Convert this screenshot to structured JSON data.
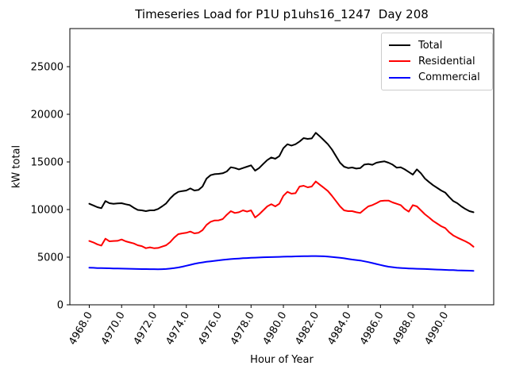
{
  "chart_data": {
    "type": "line",
    "title": "Timeseries Load for P1U p1uhs16_1247  Day 208",
    "xlabel": "Hour of Year",
    "ylabel": "kW total",
    "xlim": [
      4966.8,
      4993.0
    ],
    "ylim": [
      0,
      29000
    ],
    "grid": false,
    "legend_position": "upper right",
    "x_start": 4968.0,
    "x_step": 0.25,
    "x_ticks": [
      {
        "value": 4968,
        "label": "4968.0"
      },
      {
        "value": 4970,
        "label": "4970.0"
      },
      {
        "value": 4972,
        "label": "4972.0"
      },
      {
        "value": 4974,
        "label": "4974.0"
      },
      {
        "value": 4976,
        "label": "4976.0"
      },
      {
        "value": 4978,
        "label": "4978.0"
      },
      {
        "value": 4980,
        "label": "4980.0"
      },
      {
        "value": 4982,
        "label": "4982.0"
      },
      {
        "value": 4984,
        "label": "4984.0"
      },
      {
        "value": 4986,
        "label": "4986.0"
      },
      {
        "value": 4988,
        "label": "4988.0"
      },
      {
        "value": 4990,
        "label": "4990.0"
      }
    ],
    "y_ticks": [
      {
        "value": 0,
        "label": "0"
      },
      {
        "value": 5000,
        "label": "5000"
      },
      {
        "value": 10000,
        "label": "10000"
      },
      {
        "value": 15000,
        "label": "15000"
      },
      {
        "value": 20000,
        "label": "20000"
      },
      {
        "value": 25000,
        "label": "25000"
      }
    ],
    "series": [
      {
        "name": "Total",
        "color": "#000000",
        "values": [
          10610,
          10430,
          10250,
          10140,
          10890,
          10670,
          10610,
          10640,
          10670,
          10560,
          10470,
          10190,
          9960,
          9920,
          9830,
          9920,
          9920,
          10060,
          10330,
          10640,
          11170,
          11580,
          11860,
          11940,
          12000,
          12220,
          12000,
          12060,
          12420,
          13250,
          13610,
          13720,
          13750,
          13810,
          14000,
          14440,
          14360,
          14220,
          14360,
          14500,
          14640,
          14080,
          14360,
          14780,
          15190,
          15470,
          15330,
          15610,
          16440,
          16860,
          16720,
          16860,
          17140,
          17500,
          17420,
          17470,
          18060,
          17690,
          17280,
          16860,
          16310,
          15610,
          14920,
          14500,
          14360,
          14420,
          14300,
          14360,
          14720,
          14780,
          14700,
          14920,
          15000,
          15060,
          14920,
          14720,
          14400,
          14440,
          14220,
          13940,
          13670,
          14220,
          13810,
          13250,
          12890,
          12560,
          12280,
          12000,
          11780,
          11310,
          10890,
          10670,
          10330,
          10060,
          9830,
          9720
        ]
      },
      {
        "name": "Residential",
        "color": "#ff0000",
        "values": [
          6700,
          6550,
          6350,
          6220,
          6940,
          6670,
          6700,
          6720,
          6860,
          6670,
          6550,
          6440,
          6250,
          6160,
          5940,
          6030,
          5940,
          5970,
          6110,
          6250,
          6580,
          7060,
          7420,
          7500,
          7560,
          7690,
          7500,
          7560,
          7830,
          8390,
          8720,
          8860,
          8870,
          9000,
          9450,
          9830,
          9640,
          9720,
          9920,
          9780,
          9920,
          9170,
          9500,
          9920,
          10330,
          10560,
          10330,
          10610,
          11440,
          11860,
          11670,
          11720,
          12420,
          12500,
          12330,
          12420,
          12950,
          12610,
          12280,
          11940,
          11440,
          10890,
          10330,
          9920,
          9830,
          9830,
          9720,
          9640,
          10000,
          10330,
          10470,
          10670,
          10890,
          10940,
          10940,
          10750,
          10610,
          10470,
          10060,
          9780,
          10470,
          10330,
          9920,
          9500,
          9170,
          8810,
          8530,
          8250,
          8060,
          7610,
          7280,
          7060,
          6860,
          6670,
          6440,
          6100
        ]
      },
      {
        "name": "Commercial",
        "color": "#0000ff",
        "values": [
          3900,
          3880,
          3860,
          3850,
          3840,
          3830,
          3820,
          3810,
          3800,
          3790,
          3780,
          3770,
          3760,
          3750,
          3750,
          3740,
          3740,
          3730,
          3740,
          3760,
          3800,
          3850,
          3920,
          4000,
          4100,
          4200,
          4300,
          4380,
          4450,
          4520,
          4570,
          4620,
          4670,
          4720,
          4760,
          4800,
          4830,
          4860,
          4890,
          4910,
          4930,
          4950,
          4970,
          4990,
          5000,
          5010,
          5020,
          5030,
          5050,
          5060,
          5070,
          5080,
          5090,
          5100,
          5110,
          5120,
          5120,
          5110,
          5090,
          5060,
          5020,
          4980,
          4930,
          4880,
          4820,
          4750,
          4700,
          4650,
          4570,
          4480,
          4380,
          4280,
          4180,
          4080,
          4000,
          3950,
          3900,
          3870,
          3840,
          3820,
          3800,
          3780,
          3770,
          3760,
          3740,
          3720,
          3700,
          3680,
          3670,
          3650,
          3640,
          3620,
          3610,
          3590,
          3580,
          3570
        ]
      }
    ]
  }
}
